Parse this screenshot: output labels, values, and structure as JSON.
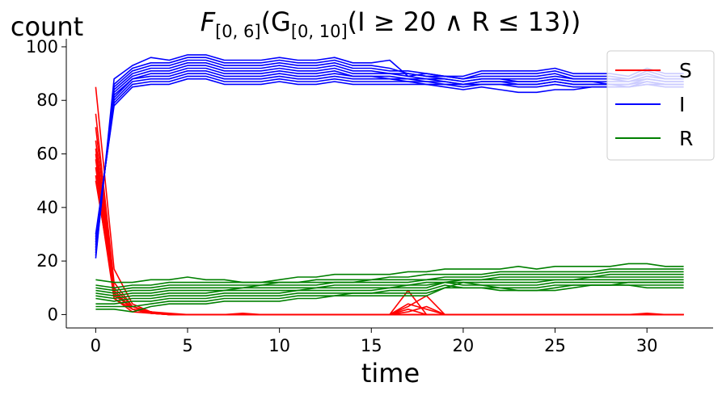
{
  "chart_data": {
    "type": "line",
    "title": "F[0,6](G[0,10](I ≥ 20 ∧ R ≤ 13))",
    "title_parts": {
      "f": "F",
      "f_sub": "[0, 6]",
      "g": "(G",
      "g_sub": "[0, 10]",
      "rest": "(I ≥ 20 ∧ R ≤ 13))"
    },
    "xlabel": "time",
    "ylabel": "count",
    "xlim": [
      -1.6,
      33.6
    ],
    "ylim": [
      -5,
      103
    ],
    "xticks": [
      0,
      5,
      10,
      15,
      20,
      25,
      30
    ],
    "yticks": [
      0,
      20,
      40,
      60,
      80,
      100
    ],
    "grid": false,
    "legend_position": "top-right",
    "colors": {
      "S": "#ff0000",
      "I": "#0000ff",
      "R": "#008000"
    },
    "legend": [
      {
        "label": "S",
        "color": "#ff0000"
      },
      {
        "label": "I",
        "color": "#0000ff"
      },
      {
        "label": "R",
        "color": "#008000"
      }
    ],
    "x": [
      0,
      1,
      2,
      3,
      4,
      5,
      6,
      7,
      8,
      9,
      10,
      11,
      12,
      13,
      14,
      15,
      16,
      17,
      18,
      19,
      20,
      21,
      22,
      23,
      24,
      25,
      26,
      27,
      28,
      29,
      30,
      31,
      32
    ],
    "series": [
      {
        "group": "S",
        "color": "#ff0000",
        "values": [
          85,
          17,
          4,
          1,
          0.5,
          0,
          0,
          0,
          0,
          0,
          0,
          0,
          0,
          0,
          0,
          0,
          0,
          9,
          0,
          0,
          0,
          0,
          0,
          0,
          0,
          0,
          0,
          0,
          0,
          0,
          0,
          0,
          0
        ]
      },
      {
        "group": "S",
        "color": "#ff0000",
        "values": [
          75,
          12,
          3,
          1,
          0,
          0,
          0,
          0,
          0,
          0,
          0,
          0,
          0,
          0,
          0,
          0,
          0,
          3,
          7,
          0,
          0,
          0,
          0,
          0,
          0,
          0,
          0,
          0,
          0,
          0,
          0,
          0,
          0
        ]
      },
      {
        "group": "S",
        "color": "#ff0000",
        "values": [
          70,
          10,
          3,
          0.5,
          0,
          0,
          0,
          0,
          0.5,
          0,
          0,
          0,
          0,
          0,
          0,
          0,
          0,
          4,
          2,
          0,
          0,
          0,
          0,
          0,
          0,
          0,
          0,
          0,
          0,
          0,
          0.5,
          0,
          0
        ]
      },
      {
        "group": "S",
        "color": "#ff0000",
        "values": [
          65,
          9,
          2,
          1,
          0,
          0,
          0,
          0,
          0,
          0,
          0,
          0,
          0,
          0,
          0,
          0,
          0,
          2,
          0,
          0,
          0,
          0,
          0,
          0,
          0,
          0,
          0,
          0,
          0,
          0,
          0,
          0,
          0
        ]
      },
      {
        "group": "S",
        "color": "#ff0000",
        "values": [
          62,
          8,
          2,
          0.5,
          0,
          0,
          0,
          0,
          0,
          0,
          0,
          0,
          0,
          0,
          0,
          0,
          0,
          1,
          3,
          0,
          0,
          0,
          0,
          0,
          0,
          0,
          0,
          0,
          0,
          0,
          0,
          0,
          0
        ]
      },
      {
        "group": "S",
        "color": "#ff0000",
        "values": [
          60,
          7,
          3,
          1,
          0,
          0,
          0,
          0,
          0,
          0,
          0,
          0,
          0,
          0,
          0,
          0,
          0,
          0,
          0,
          0,
          0,
          0,
          0,
          0,
          0,
          0,
          0,
          0,
          0,
          0,
          0,
          0,
          0
        ]
      },
      {
        "group": "S",
        "color": "#ff0000",
        "values": [
          58,
          6,
          2,
          1,
          0,
          0,
          0,
          0,
          0,
          0,
          0,
          0,
          0,
          0,
          0,
          0,
          0,
          0,
          0,
          0,
          0,
          0,
          0,
          0,
          0,
          0,
          0,
          0,
          0,
          0,
          0,
          0,
          0
        ]
      },
      {
        "group": "S",
        "color": "#ff0000",
        "values": [
          55,
          8,
          2,
          0.5,
          0,
          0,
          0,
          0,
          0,
          0,
          0,
          0,
          0,
          0,
          0,
          0,
          0,
          0,
          0,
          0,
          0,
          0,
          0,
          0,
          0,
          0,
          0,
          0,
          0,
          0,
          0,
          0,
          0
        ]
      },
      {
        "group": "S",
        "color": "#ff0000",
        "values": [
          52,
          6,
          1,
          0.5,
          0,
          0,
          0,
          0,
          0,
          0,
          0,
          0,
          0,
          0,
          0,
          0,
          0,
          0,
          0,
          0,
          0,
          0,
          0,
          0,
          0,
          0,
          0,
          0,
          0,
          0,
          0,
          0,
          0
        ]
      },
      {
        "group": "S",
        "color": "#ff0000",
        "values": [
          50,
          9,
          2,
          1,
          0,
          0,
          0,
          0,
          0,
          0,
          0,
          0,
          0,
          0,
          0,
          0,
          0,
          0,
          0,
          0,
          0,
          0,
          0,
          0,
          0,
          0,
          0,
          0,
          0,
          0,
          0,
          0,
          0
        ]
      },
      {
        "group": "I",
        "color": "#0000ff",
        "values": [
          21,
          88,
          93,
          96,
          95,
          97,
          97,
          95,
          95,
          95,
          96,
          95,
          95,
          96,
          94,
          94,
          95,
          89,
          90,
          89,
          89,
          91,
          91,
          91,
          91,
          92,
          90,
          90,
          90,
          89,
          92,
          90,
          90
        ]
      },
      {
        "group": "I",
        "color": "#0000ff",
        "values": [
          22,
          86,
          92,
          94,
          94,
          96,
          96,
          94,
          94,
          94,
          95,
          94,
          94,
          95,
          93,
          93,
          92,
          90,
          89,
          89,
          88,
          90,
          90,
          90,
          90,
          91,
          89,
          89,
          89,
          88,
          91,
          89,
          89
        ]
      },
      {
        "group": "I",
        "color": "#0000ff",
        "values": [
          23,
          85,
          91,
          93,
          93,
          95,
          95,
          93,
          93,
          93,
          94,
          93,
          93,
          94,
          92,
          92,
          91,
          91,
          90,
          89,
          88,
          89,
          89,
          89,
          89,
          90,
          88,
          88,
          88,
          88,
          90,
          88,
          88
        ]
      },
      {
        "group": "I",
        "color": "#0000ff",
        "values": [
          24,
          84,
          90,
          92,
          92,
          94,
          94,
          92,
          92,
          92,
          93,
          92,
          92,
          93,
          91,
          91,
          90,
          90,
          89,
          88,
          87,
          88,
          88,
          88,
          88,
          89,
          88,
          88,
          88,
          87,
          89,
          88,
          88
        ]
      },
      {
        "group": "I",
        "color": "#0000ff",
        "values": [
          25,
          83,
          89,
          91,
          91,
          93,
          93,
          91,
          91,
          91,
          92,
          91,
          91,
          92,
          90,
          90,
          90,
          89,
          88,
          88,
          87,
          88,
          88,
          87,
          87,
          88,
          87,
          87,
          87,
          87,
          88,
          87,
          87
        ]
      },
      {
        "group": "I",
        "color": "#0000ff",
        "values": [
          26,
          82,
          88,
          90,
          90,
          92,
          92,
          90,
          90,
          90,
          91,
          90,
          90,
          91,
          89,
          89,
          89,
          88,
          88,
          87,
          86,
          87,
          87,
          87,
          87,
          88,
          87,
          87,
          86,
          86,
          88,
          87,
          87
        ]
      },
      {
        "group": "I",
        "color": "#0000ff",
        "values": [
          27,
          81,
          88,
          89,
          89,
          91,
          91,
          89,
          89,
          89,
          90,
          89,
          89,
          90,
          89,
          89,
          88,
          88,
          87,
          87,
          86,
          87,
          87,
          86,
          86,
          87,
          86,
          86,
          86,
          86,
          87,
          86,
          86
        ]
      },
      {
        "group": "I",
        "color": "#0000ff",
        "values": [
          28,
          80,
          87,
          88,
          88,
          90,
          90,
          88,
          88,
          88,
          89,
          88,
          88,
          89,
          88,
          88,
          88,
          87,
          87,
          86,
          86,
          86,
          86,
          86,
          86,
          87,
          86,
          86,
          86,
          85,
          87,
          86,
          86
        ]
      },
      {
        "group": "I",
        "color": "#0000ff",
        "values": [
          29,
          79,
          86,
          87,
          87,
          89,
          89,
          87,
          87,
          87,
          88,
          87,
          87,
          88,
          87,
          87,
          87,
          87,
          86,
          86,
          85,
          86,
          86,
          85,
          85,
          86,
          85,
          85,
          85,
          85,
          86,
          85,
          85
        ]
      },
      {
        "group": "I",
        "color": "#0000ff",
        "values": [
          30,
          78,
          85,
          86,
          86,
          88,
          88,
          86,
          86,
          86,
          87,
          86,
          86,
          87,
          86,
          86,
          86,
          86,
          86,
          85,
          84,
          85,
          84,
          83,
          83,
          84,
          84,
          85,
          85,
          85,
          86,
          86,
          86
        ]
      },
      {
        "group": "R",
        "color": "#008000",
        "values": [
          13,
          12,
          12,
          13,
          13,
          14,
          13,
          13,
          12,
          12,
          13,
          14,
          14,
          15,
          15,
          15,
          15,
          16,
          16,
          17,
          17,
          17,
          17,
          18,
          17,
          18,
          18,
          18,
          18,
          19,
          19,
          18,
          18
        ]
      },
      {
        "group": "R",
        "color": "#008000",
        "values": [
          11,
          10,
          11,
          11,
          12,
          12,
          12,
          12,
          12,
          12,
          12,
          12,
          13,
          13,
          13,
          13,
          14,
          14,
          15,
          15,
          15,
          15,
          16,
          16,
          16,
          16,
          16,
          16,
          17,
          17,
          17,
          17,
          17
        ]
      },
      {
        "group": "R",
        "color": "#008000",
        "values": [
          10,
          9,
          10,
          10,
          11,
          11,
          11,
          11,
          11,
          11,
          12,
          12,
          12,
          12,
          12,
          13,
          13,
          13,
          13,
          14,
          14,
          14,
          15,
          15,
          15,
          15,
          15,
          15,
          16,
          16,
          16,
          16,
          16
        ]
      },
      {
        "group": "R",
        "color": "#008000",
        "values": [
          9,
          8,
          9,
          9,
          10,
          10,
          10,
          10,
          10,
          11,
          11,
          11,
          11,
          12,
          12,
          12,
          12,
          12,
          13,
          13,
          13,
          13,
          14,
          14,
          14,
          14,
          14,
          14,
          15,
          15,
          15,
          15,
          15
        ]
      },
      {
        "group": "R",
        "color": "#008000",
        "values": [
          8,
          7,
          8,
          8,
          9,
          9,
          9,
          9,
          10,
          10,
          10,
          10,
          10,
          11,
          11,
          11,
          11,
          11,
          12,
          12,
          13,
          13,
          13,
          13,
          13,
          13,
          13,
          14,
          14,
          14,
          14,
          14,
          14
        ]
      },
      {
        "group": "R",
        "color": "#008000",
        "values": [
          7,
          6,
          7,
          7,
          8,
          8,
          8,
          9,
          9,
          9,
          9,
          9,
          10,
          10,
          10,
          10,
          10,
          11,
          11,
          12,
          12,
          12,
          12,
          12,
          12,
          13,
          13,
          13,
          13,
          13,
          13,
          13,
          13
        ]
      },
      {
        "group": "R",
        "color": "#008000",
        "values": [
          6,
          5,
          6,
          6,
          7,
          7,
          7,
          8,
          8,
          8,
          8,
          9,
          9,
          9,
          9,
          9,
          10,
          10,
          10,
          12,
          11,
          11,
          11,
          11,
          11,
          12,
          12,
          12,
          12,
          12,
          12,
          12,
          12
        ]
      },
      {
        "group": "R",
        "color": "#008000",
        "values": [
          4,
          4,
          5,
          5,
          6,
          6,
          6,
          7,
          7,
          7,
          7,
          8,
          8,
          8,
          8,
          8,
          9,
          9,
          9,
          11,
          10,
          10,
          10,
          10,
          10,
          11,
          11,
          11,
          11,
          12,
          12,
          12,
          12
        ]
      },
      {
        "group": "R",
        "color": "#008000",
        "values": [
          3,
          3,
          3,
          4,
          5,
          5,
          5,
          6,
          6,
          6,
          6,
          7,
          7,
          7,
          8,
          8,
          8,
          8,
          8,
          10,
          10,
          10,
          9,
          9,
          9,
          10,
          11,
          11,
          11,
          11,
          11,
          11,
          11
        ]
      },
      {
        "group": "R",
        "color": "#008000",
        "values": [
          2,
          2,
          1,
          3,
          4,
          4,
          4,
          5,
          5,
          5,
          5,
          6,
          6,
          7,
          7,
          7,
          7,
          7,
          7,
          10,
          12,
          11,
          10,
          9,
          9,
          9,
          10,
          11,
          11,
          11,
          10,
          10,
          10
        ]
      }
    ]
  }
}
